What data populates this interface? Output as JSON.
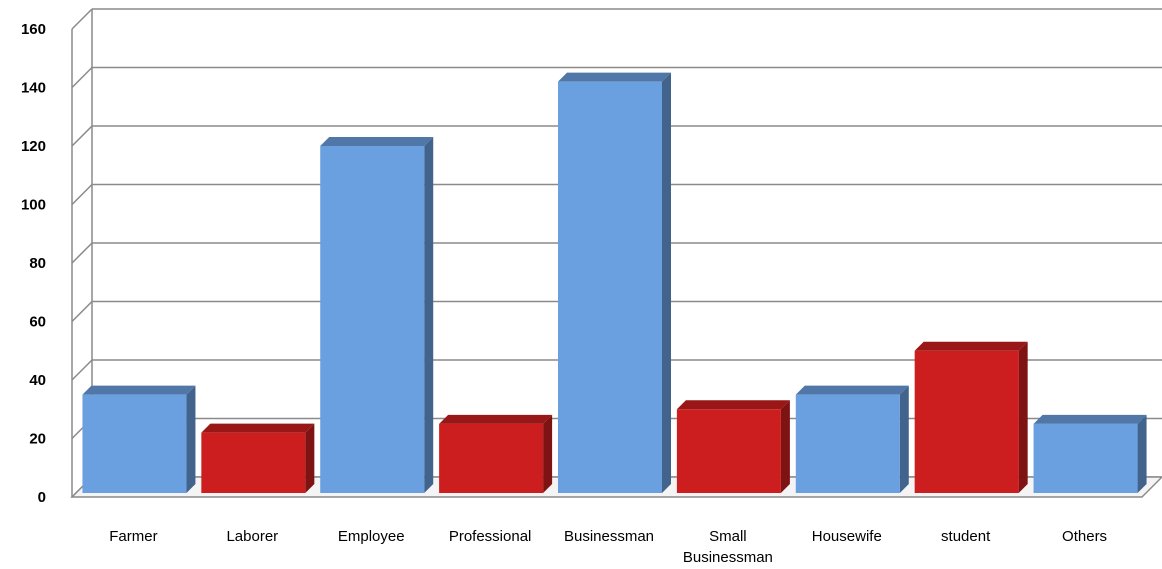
{
  "chart_data": {
    "type": "bar",
    "title": "",
    "xlabel": "",
    "ylabel": "",
    "categories": [
      [
        "Farmer"
      ],
      [
        "Laborer"
      ],
      [
        "Employee"
      ],
      [
        "Professional"
      ],
      [
        "Businessman"
      ],
      [
        "Small",
        "Businessman"
      ],
      [
        "Housewife"
      ],
      [
        "student"
      ],
      [
        "Others"
      ]
    ],
    "values": [
      35,
      22,
      120,
      25,
      142,
      30,
      35,
      50,
      25
    ],
    "bar_colors": [
      "#6A9FE0",
      "#CC1E1E",
      "#6A9FE0",
      "#CC1E1E",
      "#6A9FE0",
      "#CC1E1E",
      "#6A9FE0",
      "#CC1E1E",
      "#6A9FE0"
    ],
    "ylim": [
      0,
      160
    ],
    "yticks": [
      0,
      20,
      40,
      60,
      80,
      100,
      120,
      140,
      160
    ],
    "grid": true,
    "legend": "none",
    "style": "3d-clustered-column"
  }
}
